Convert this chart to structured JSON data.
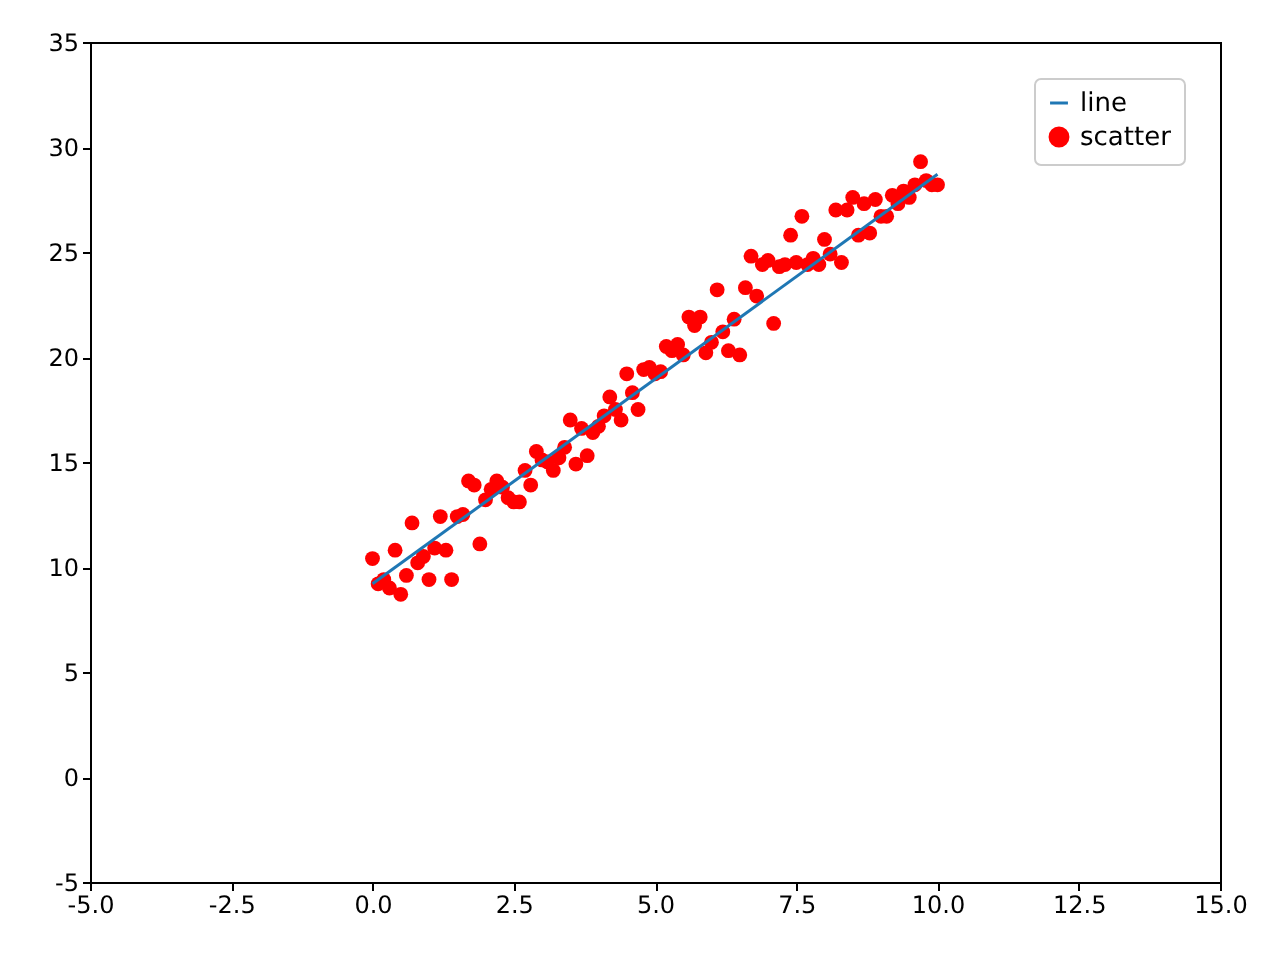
{
  "chart_data": {
    "type": "scatter",
    "legend": "top right",
    "grid": false,
    "xlim": [
      -5,
      15
    ],
    "xticks": [
      {
        "value": -5,
        "label": "-5.0"
      },
      {
        "value": -2.5,
        "label": "-2.5"
      },
      {
        "value": 0,
        "label": "0.0"
      },
      2.5,
      {
        "value": 5,
        "label": "5.0"
      },
      7.5,
      {
        "value": 10,
        "label": "10.0"
      },
      12.5,
      {
        "value": 15,
        "label": "15.0"
      }
    ],
    "ylim": [
      -5,
      35
    ],
    "yticks": [
      {
        "value": -5,
        "label": "-5"
      },
      0,
      5,
      10,
      15,
      20,
      25,
      30,
      35
    ],
    "series": [
      {
        "name": "line",
        "type": "line",
        "color": "#1f77b4",
        "x": [
          0,
          10
        ],
        "values": [
          9.2,
          28.7
        ]
      },
      {
        "name": "scatter",
        "type": "scatter",
        "color": "#ff0000",
        "marker": "circle",
        "x": [
          0,
          0.1,
          0.2,
          0.3,
          0.4,
          0.5,
          0.6,
          0.7,
          0.8,
          0.9,
          1.0,
          1.1,
          1.2,
          1.3,
          1.4,
          1.5,
          1.6,
          1.7,
          1.8,
          1.9,
          2.0,
          2.1,
          2.2,
          2.3,
          2.4,
          2.5,
          2.6,
          2.7,
          2.8,
          2.9,
          3.0,
          3.1,
          3.2,
          3.3,
          3.4,
          3.5,
          3.6,
          3.7,
          3.8,
          3.9,
          4.0,
          4.1,
          4.2,
          4.3,
          4.4,
          4.5,
          4.6,
          4.7,
          4.8,
          4.9,
          5.0,
          5.1,
          5.2,
          5.3,
          5.4,
          5.5,
          5.6,
          5.7,
          5.8,
          5.9,
          6.0,
          6.1,
          6.2,
          6.3,
          6.4,
          6.5,
          6.6,
          6.7,
          6.8,
          6.9,
          7.0,
          7.1,
          7.2,
          7.3,
          7.4,
          7.5,
          7.6,
          7.7,
          7.8,
          7.9,
          8.0,
          8.1,
          8.2,
          8.3,
          8.4,
          8.5,
          8.6,
          8.7,
          8.8,
          8.9,
          9.0,
          9.1,
          9.2,
          9.3,
          9.4,
          9.5,
          9.6,
          9.7,
          9.8,
          9.9,
          10.0
        ],
        "values": [
          10.4,
          9.2,
          9.4,
          9.0,
          10.8,
          8.7,
          9.6,
          12.1,
          10.2,
          10.5,
          9.4,
          10.9,
          12.4,
          10.8,
          9.4,
          12.4,
          12.5,
          14.1,
          13.9,
          11.1,
          13.2,
          13.7,
          14.1,
          13.8,
          13.3,
          13.1,
          13.1,
          14.6,
          13.9,
          15.5,
          15.1,
          15.0,
          14.6,
          15.2,
          15.7,
          17.0,
          14.9,
          16.6,
          15.3,
          16.4,
          16.7,
          17.2,
          18.1,
          17.5,
          17.0,
          19.2,
          18.3,
          17.5,
          19.4,
          19.5,
          19.2,
          19.3,
          20.5,
          20.3,
          20.6,
          20.1,
          21.9,
          21.5,
          21.9,
          20.2,
          20.7,
          23.2,
          21.2,
          20.3,
          21.8,
          20.1,
          23.3,
          24.8,
          22.9,
          24.4,
          24.6,
          21.6,
          24.3,
          24.4,
          25.8,
          24.5,
          26.7,
          24.4,
          24.7,
          24.4,
          25.6,
          24.9,
          27.0,
          24.5,
          27.0,
          27.6,
          25.8,
          27.3,
          25.9,
          27.5,
          26.7,
          26.7,
          27.7,
          27.3,
          27.9,
          27.6,
          28.2,
          29.3,
          28.4,
          28.2,
          28.2
        ]
      }
    ]
  }
}
